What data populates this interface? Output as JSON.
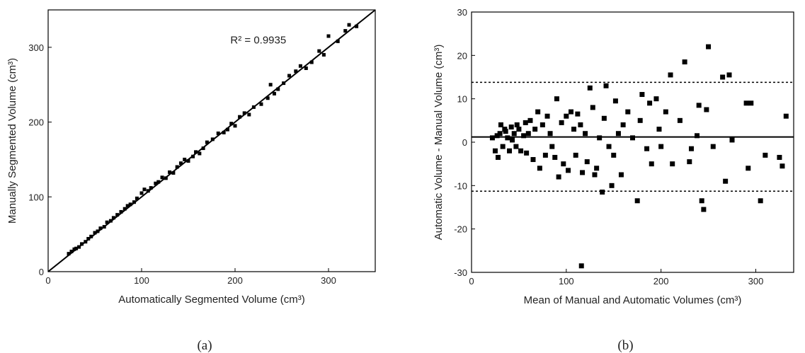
{
  "chart_data": [
    {
      "type": "scatter",
      "panel_label": "(a)",
      "xlabel": "Automatically Segmented Volume (cm³)",
      "ylabel": "Manually Segmented Volume (cm³)",
      "annotation": "R² = 0.9935",
      "color": "#000000",
      "identity_line": true,
      "xlim": [
        0,
        350
      ],
      "ylim": [
        0,
        350
      ],
      "xticks": [
        0,
        100,
        200,
        300
      ],
      "yticks": [
        0,
        100,
        200,
        300
      ],
      "x": [
        22,
        25,
        28,
        30,
        33,
        36,
        40,
        43,
        46,
        50,
        53,
        56,
        60,
        63,
        67,
        70,
        74,
        78,
        82,
        85,
        88,
        92,
        95,
        100,
        103,
        107,
        110,
        115,
        118,
        122,
        126,
        130,
        134,
        138,
        142,
        146,
        150,
        155,
        158,
        162,
        166,
        170,
        176,
        182,
        188,
        192,
        196,
        200,
        205,
        210,
        215,
        220,
        228,
        235,
        238,
        242,
        246,
        252,
        258,
        265,
        270,
        276,
        282,
        290,
        295,
        300,
        310,
        318,
        322,
        330
      ],
      "values": [
        24,
        27,
        30,
        31,
        33,
        37,
        40,
        44,
        47,
        52,
        54,
        58,
        60,
        66,
        68,
        72,
        76,
        80,
        84,
        88,
        90,
        93,
        98,
        105,
        110,
        108,
        112,
        118,
        120,
        126,
        125,
        133,
        132,
        140,
        145,
        150,
        148,
        154,
        160,
        158,
        165,
        173,
        177,
        185,
        186,
        190,
        198,
        195,
        207,
        212,
        210,
        220,
        224,
        232,
        250,
        238,
        244,
        252,
        262,
        268,
        275,
        272,
        280,
        295,
        290,
        315,
        308,
        322,
        330,
        328
      ]
    },
    {
      "type": "scatter",
      "panel_label": "(b)",
      "xlabel": "Mean of Manual and Automatic Volumes (cm³)",
      "ylabel": "Automatic Volume - Manual Volume (cm³)",
      "color": "#000000",
      "xlim": [
        0,
        340
      ],
      "ylim": [
        -30,
        30
      ],
      "xticks": [
        0,
        100,
        200,
        300
      ],
      "yticks": [
        -30,
        -20,
        -10,
        0,
        10,
        20,
        30
      ],
      "hlines": [
        {
          "value": 13.8,
          "style": "dotted"
        },
        {
          "value": 1.2,
          "style": "solid"
        },
        {
          "value": -11.3,
          "style": "dotted"
        }
      ],
      "x": [
        22,
        25,
        27,
        28,
        30,
        31,
        33,
        35,
        36,
        38,
        40,
        42,
        43,
        45,
        47,
        48,
        50,
        52,
        55,
        57,
        58,
        60,
        62,
        65,
        67,
        70,
        72,
        75,
        78,
        80,
        83,
        85,
        88,
        90,
        92,
        95,
        97,
        100,
        102,
        105,
        108,
        110,
        112,
        115,
        117,
        120,
        122,
        125,
        128,
        130,
        132,
        135,
        138,
        140,
        142,
        145,
        148,
        150,
        152,
        155,
        158,
        160,
        165,
        170,
        175,
        178,
        180,
        185,
        188,
        190,
        195,
        198,
        200,
        205,
        210,
        212,
        220,
        225,
        230,
        232,
        238,
        240,
        243,
        245,
        248,
        250,
        255,
        265,
        268,
        272,
        275,
        290,
        292,
        295,
        305,
        310,
        325,
        328,
        332,
        116
      ],
      "values": [
        1,
        -2,
        1.5,
        -3.5,
        2,
        4,
        -1,
        3,
        2.5,
        1,
        -2,
        3.5,
        0.5,
        2,
        -1,
        4,
        3,
        -2,
        1.5,
        4.5,
        -2.5,
        2,
        5,
        -4,
        3,
        7,
        -6,
        4,
        -3,
        6,
        2,
        -1,
        -3.5,
        10,
        -8,
        4.5,
        -5,
        6,
        -6.5,
        7,
        3,
        -3,
        6.5,
        4,
        -7,
        2,
        -4.5,
        12.5,
        8,
        -7.5,
        -6,
        1,
        -11.5,
        5.5,
        13,
        -1,
        -10,
        -3,
        9.5,
        2,
        -7.5,
        4,
        7,
        1,
        -13.5,
        5,
        11,
        -1.5,
        9,
        -5,
        10,
        3,
        -1,
        7,
        15.5,
        -5,
        5,
        18.5,
        -4.5,
        -1.5,
        1.5,
        8.5,
        -13.5,
        -15.5,
        7.5,
        22,
        -1,
        15,
        -9,
        15.5,
        0.5,
        9,
        -6,
        9,
        -13.5,
        -3,
        -3.5,
        -5.5,
        6,
        -28.5
      ]
    }
  ]
}
